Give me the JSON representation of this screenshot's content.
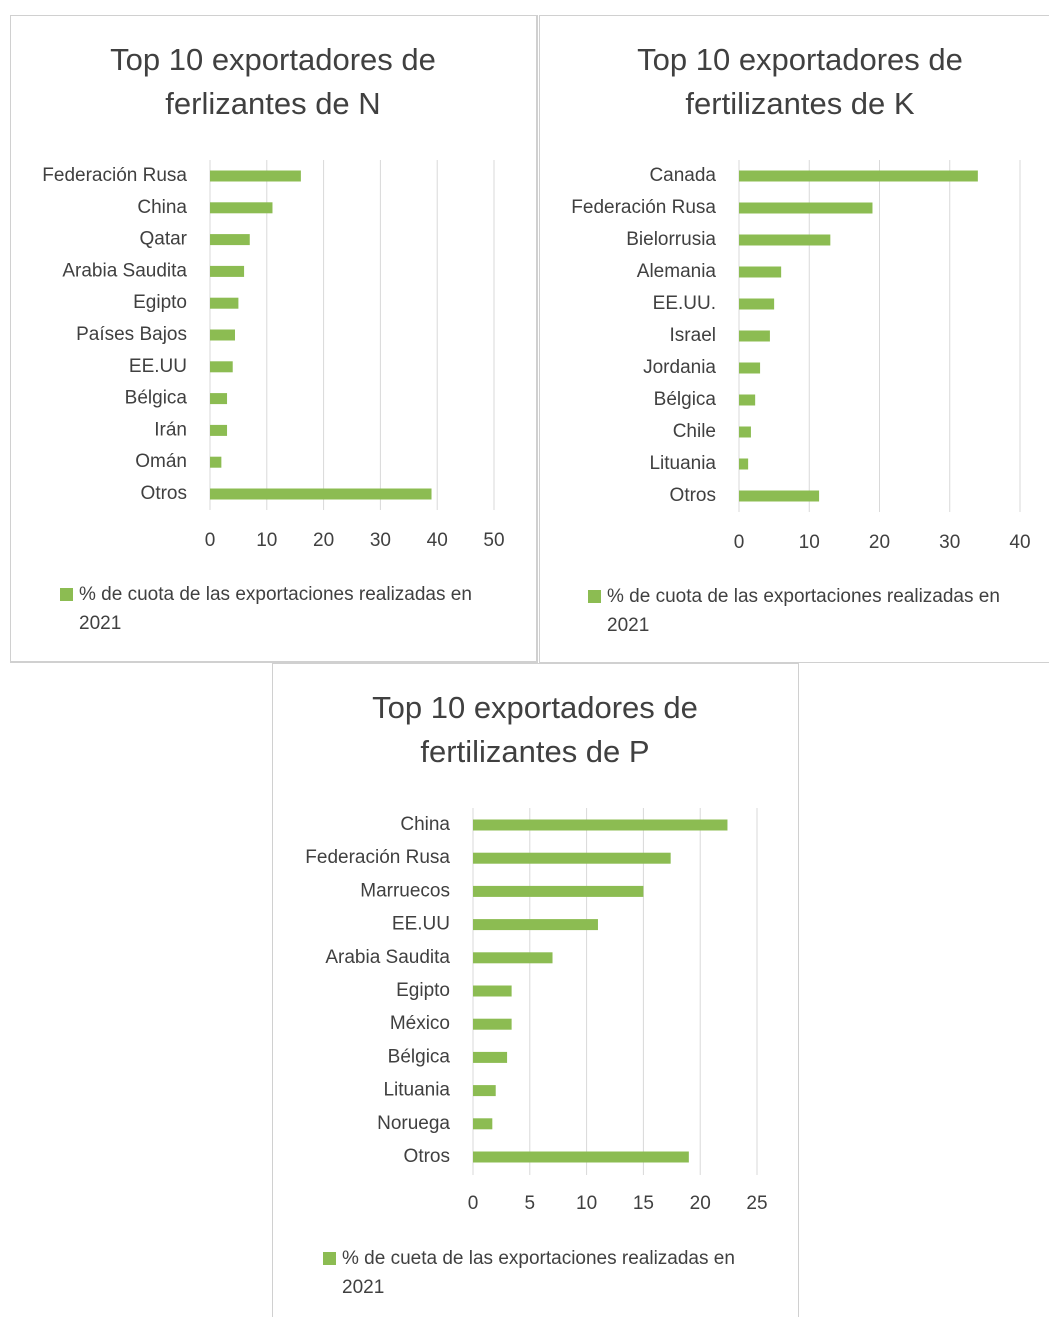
{
  "chart_data": [
    {
      "type": "bar",
      "orientation": "horizontal",
      "title": "Top 10 exportadores de ferlizantes de N",
      "categories": [
        "Federación Rusa",
        "China",
        "Qatar",
        "Arabia Saudita",
        "Egipto",
        "Países Bajos",
        "EE.UU",
        "Bélgica",
        "Irán",
        "Omán",
        "Otros"
      ],
      "series": [
        {
          "name": "% de cuota de las exportaciones realizadas en 2021",
          "color": "#8cbc52",
          "values": [
            16,
            11,
            7,
            6,
            5,
            4.4,
            4,
            3,
            3,
            2,
            39
          ]
        }
      ],
      "xlim": [
        0,
        50
      ],
      "xticks": [
        0,
        10,
        20,
        30,
        40,
        50
      ],
      "grid": true,
      "legend": "bottom"
    },
    {
      "type": "bar",
      "orientation": "horizontal",
      "title": "Top 10 exportadores de fertilizantes de K",
      "categories": [
        "Canada",
        "Federación Rusa",
        "Bielorrusia",
        "Alemania",
        "EE.UU.",
        "Israel",
        "Jordania",
        "Bélgica",
        "Chile",
        "Lituania",
        "Otros"
      ],
      "series": [
        {
          "name": "% de cuota de las exportaciones realizadas en 2021",
          "color": "#8cbc52",
          "values": [
            34,
            19,
            13,
            6,
            5,
            4.4,
            3,
            2.3,
            1.7,
            1.3,
            11.4
          ]
        }
      ],
      "xlim": [
        0,
        40
      ],
      "xticks": [
        0,
        10,
        20,
        30,
        40
      ],
      "grid": true,
      "legend": "bottom"
    },
    {
      "type": "bar",
      "orientation": "horizontal",
      "title": "Top 10 exportadores de fertilizantes de P",
      "categories": [
        "China",
        "Federación Rusa",
        "Marruecos",
        "EE.UU",
        "Arabia Saudita",
        "Egipto",
        "México",
        "Bélgica",
        "Lituania",
        "Noruega",
        "Otros"
      ],
      "series": [
        {
          "name": "% de cueta de las exportaciones realizadas en 2021",
          "color": "#8cbc52",
          "values": [
            22.4,
            17.4,
            15,
            11,
            7,
            3.4,
            3.4,
            3,
            2,
            1.7,
            19
          ]
        }
      ],
      "xlim": [
        0,
        25
      ],
      "xticks": [
        0,
        5,
        10,
        15,
        20,
        25
      ],
      "grid": true,
      "legend": "bottom"
    }
  ]
}
